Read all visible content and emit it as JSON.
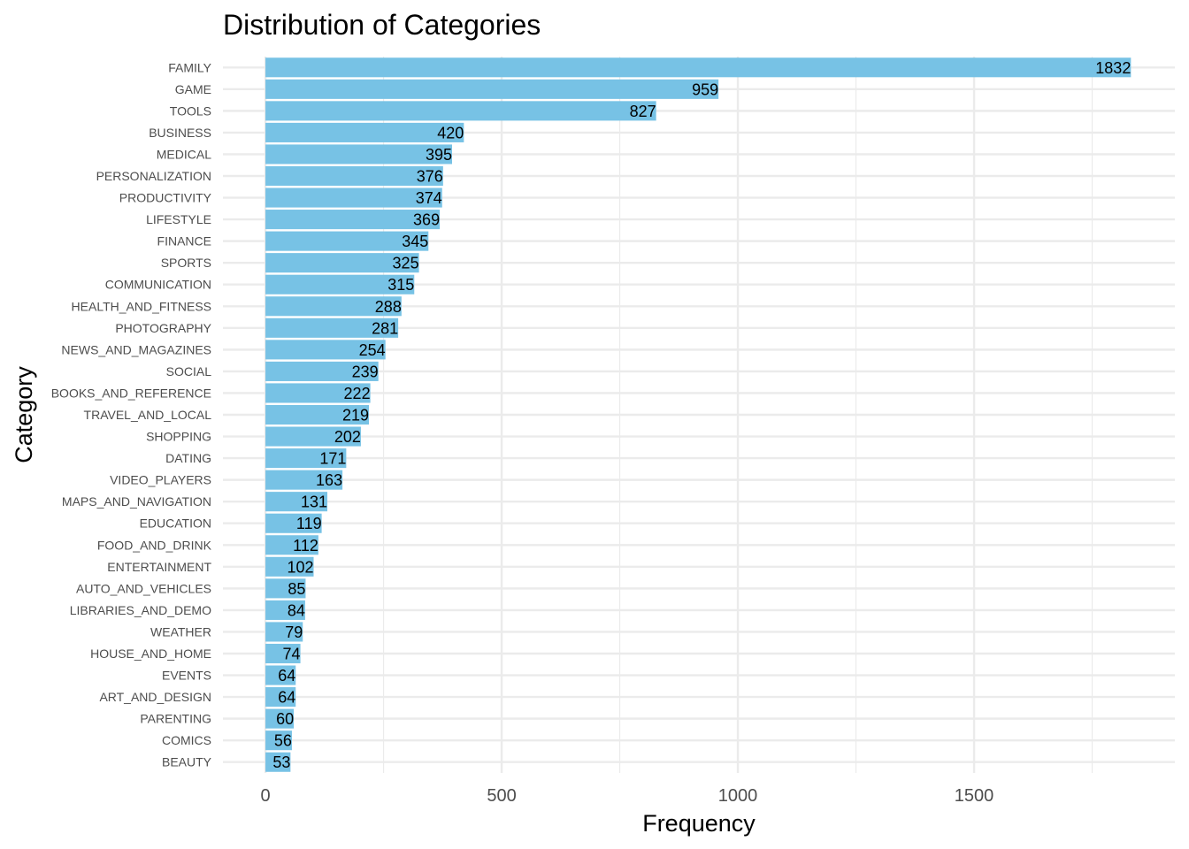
{
  "chart_data": {
    "type": "bar",
    "orientation": "horizontal",
    "title": "Distribution of Categories",
    "xlabel": "Frequency",
    "ylabel": "Category",
    "xlim": [
      -90,
      1925
    ],
    "xticks": [
      0,
      500,
      1000,
      1500
    ],
    "grid": true,
    "bar_color": "#77C2E5",
    "categories": [
      "FAMILY",
      "GAME",
      "TOOLS",
      "BUSINESS",
      "MEDICAL",
      "PERSONALIZATION",
      "PRODUCTIVITY",
      "LIFESTYLE",
      "FINANCE",
      "SPORTS",
      "COMMUNICATION",
      "HEALTH_AND_FITNESS",
      "PHOTOGRAPHY",
      "NEWS_AND_MAGAZINES",
      "SOCIAL",
      "BOOKS_AND_REFERENCE",
      "TRAVEL_AND_LOCAL",
      "SHOPPING",
      "DATING",
      "VIDEO_PLAYERS",
      "MAPS_AND_NAVIGATION",
      "EDUCATION",
      "FOOD_AND_DRINK",
      "ENTERTAINMENT",
      "AUTO_AND_VEHICLES",
      "LIBRARIES_AND_DEMO",
      "WEATHER",
      "HOUSE_AND_HOME",
      "EVENTS",
      "ART_AND_DESIGN",
      "PARENTING",
      "COMICS",
      "BEAUTY"
    ],
    "values": [
      1832,
      959,
      827,
      420,
      395,
      376,
      374,
      369,
      345,
      325,
      315,
      288,
      281,
      254,
      239,
      222,
      219,
      202,
      171,
      163,
      131,
      119,
      112,
      102,
      85,
      84,
      79,
      74,
      64,
      64,
      60,
      56,
      53
    ]
  }
}
